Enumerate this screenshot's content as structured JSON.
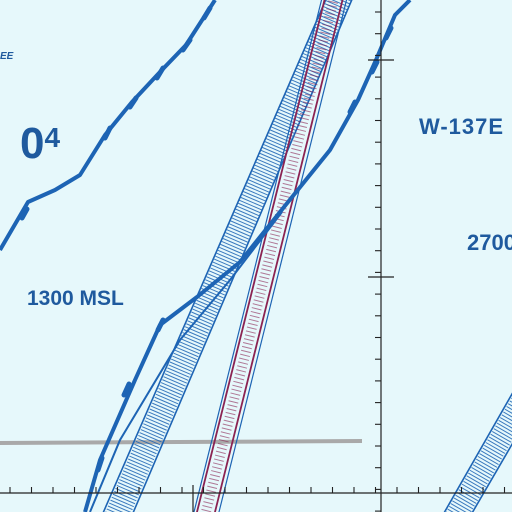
{
  "map": {
    "type": "aeronautical-sectional-chart",
    "background_color": "#e6f8fb",
    "colors": {
      "boundary_blue": "#1d64b4",
      "label_blue": "#1f5a9e",
      "airway_maroon": "#8b2352",
      "gray_line": "#a9a9a9",
      "graticule_black": "#222222"
    },
    "labels": {
      "partial_corner": "EE",
      "altitude_big": "0",
      "altitude_small": "4",
      "warning_area": "W-137E",
      "altitude_right": "2700",
      "altitude_left": "1300 MSL"
    }
  }
}
